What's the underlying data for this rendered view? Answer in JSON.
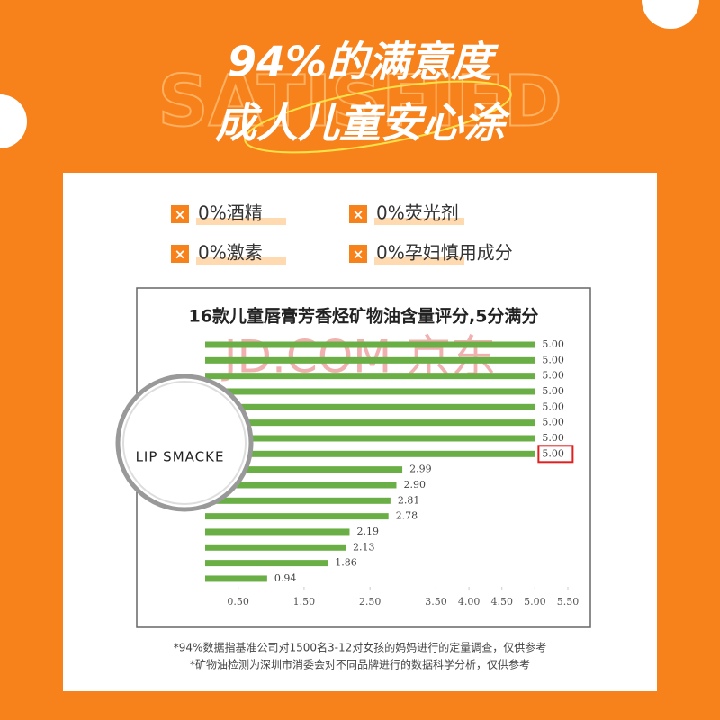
{
  "header": {
    "title": "94%的满意度",
    "subtitle": "成人儿童安心涂",
    "backdrop": "SATISFIED"
  },
  "features": [
    "0%酒精",
    "0%荧光剂",
    "0%激素",
    "0%孕妇慎用成分"
  ],
  "chart_data": {
    "type": "bar",
    "orientation": "horizontal",
    "title": "16款儿童唇膏芳香烃矿物油含量评分,5分满分",
    "watermark": "JD.COM 京东",
    "categories": [
      null,
      null,
      null,
      null,
      null,
      null,
      null,
      "LIP SMACKE",
      null,
      null,
      null,
      null,
      null,
      null,
      null,
      null
    ],
    "values": [
      5,
      5,
      5,
      5,
      5,
      5,
      5,
      5,
      2.99,
      2.9,
      2.81,
      2.78,
      2.19,
      2.13,
      1.86,
      0.94
    ],
    "value_labels": [
      "5.00",
      "5.00",
      "5.00",
      "5.00",
      "5.00",
      "5.00",
      "5.00",
      "5.00",
      "2.99",
      "2.90",
      "2.81",
      "2.78",
      "2.19",
      "2.13",
      "1.86",
      "0.94"
    ],
    "color": "#6aaf45",
    "highlight": 7,
    "highlight_color": "#e02020",
    "xlim": [
      0,
      5.5
    ],
    "xticks": [
      {
        "value": 0.5,
        "label": "0.50"
      },
      {
        "value": 1.5,
        "label": "1.50"
      },
      {
        "value": 2.5,
        "label": "2.50"
      },
      {
        "value": 3.5,
        "label": "3.50"
      },
      {
        "value": 4,
        "label": "4.00"
      },
      {
        "value": 4.5,
        "label": "4.50"
      },
      {
        "value": 5,
        "label": "5.00"
      },
      {
        "value": 5.5,
        "label": "5.50"
      }
    ]
  },
  "footnotes": [
    "*94%数据指基准公司对1500名3-12对女孩的妈妈进行的定量调查，仅供参考",
    "*矿物油检测为深圳市消委会对不同品牌进行的数据科学分析，仅供参考"
  ]
}
